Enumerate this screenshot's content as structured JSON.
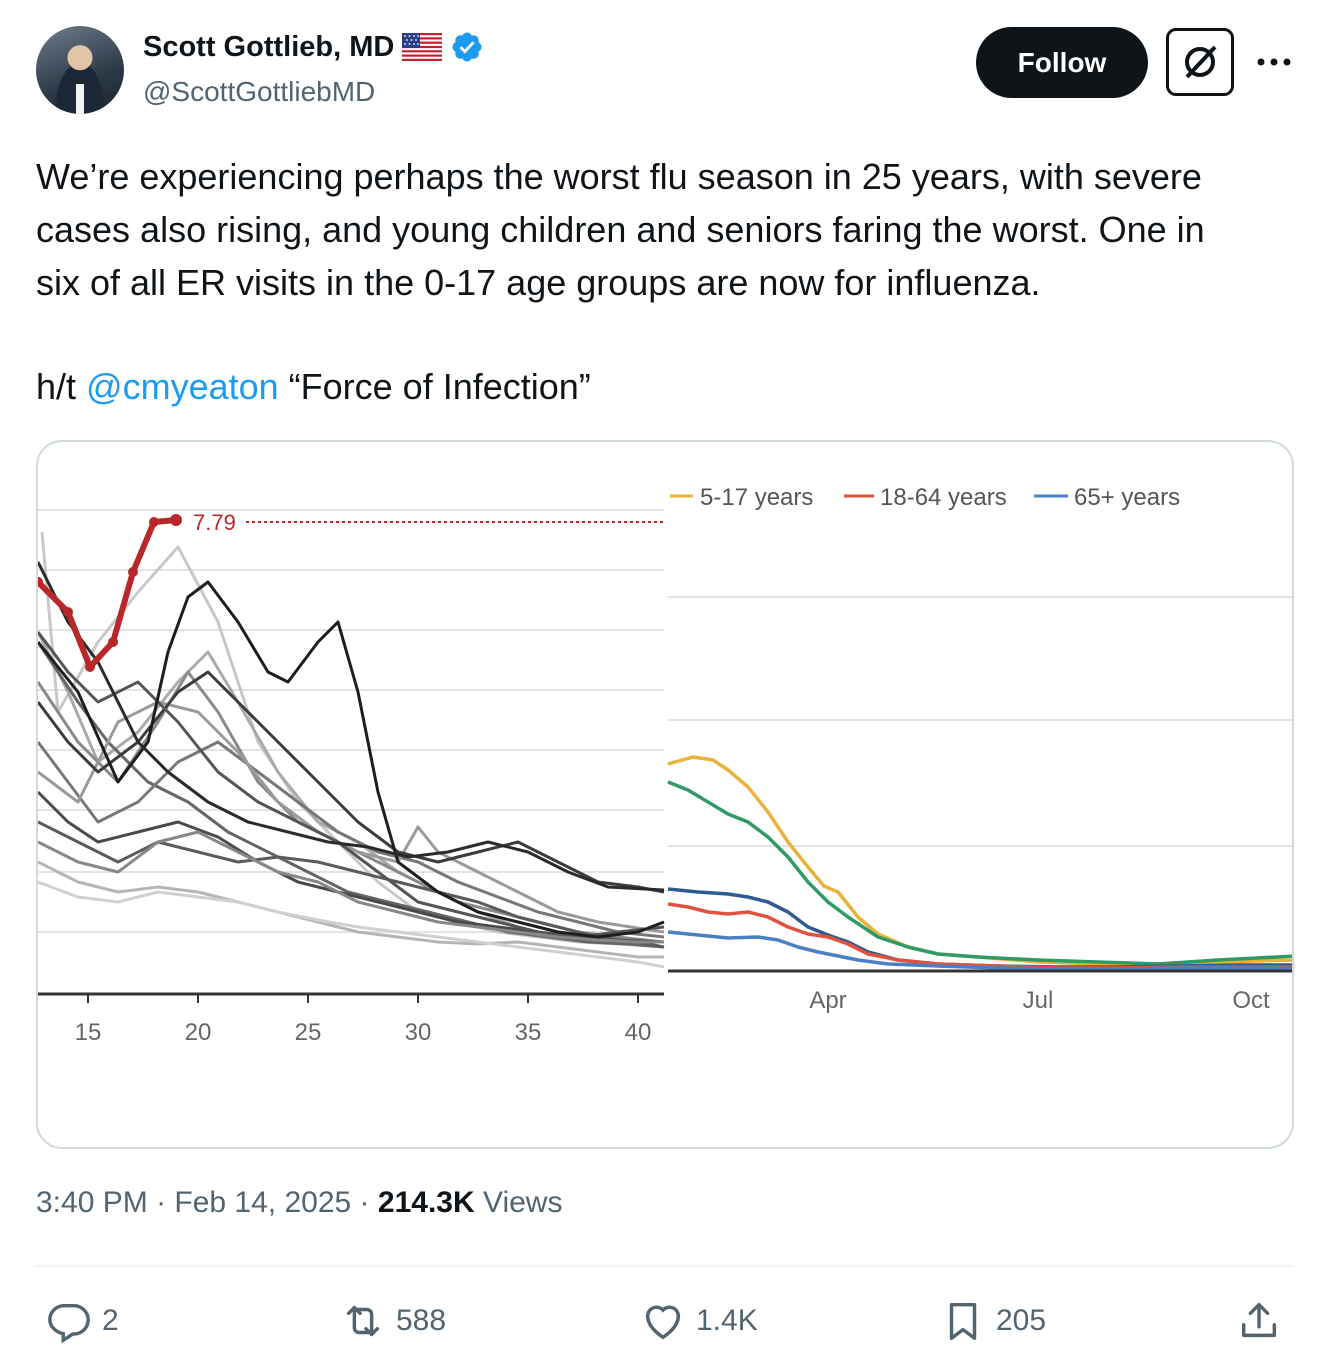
{
  "author": {
    "name": "Scott Gottlieb, MD",
    "handle": "@ScottGottliebMD"
  },
  "buttons": {
    "follow_label": "Follow"
  },
  "tweet": {
    "lines": [
      "We’re experiencing perhaps the worst flu season in 25 years, with severe",
      "cases also rising, and young children and seniors faring the worst. One in",
      "six of all ER visits in the 0-17 age groups are now for influenza."
    ],
    "ht_prefix": "h/t ",
    "mention": "@cmyeaton",
    "ht_suffix": " “Force of Infection”"
  },
  "meta": {
    "time": "3:40 PM",
    "sep1": " · ",
    "date": "Feb 14, 2025",
    "sep2": " · ",
    "views_count": "214.3K",
    "views_label": " Views"
  },
  "actions": {
    "replies": "2",
    "reposts": "588",
    "likes": "1.4K",
    "bookmarks": "205"
  },
  "colors": {
    "accent": "#1d9bf0",
    "current_season": "#b8282a"
  },
  "chart_data": [
    {
      "type": "line",
      "xticks": [
        "15",
        "20",
        "25",
        "30",
        "35",
        "40"
      ],
      "annotation": "7.79",
      "peak_value": 7.79
    },
    {
      "type": "line",
      "legend": [
        "5-17 years",
        "18-64 years",
        "65+ years"
      ],
      "xticks": [
        "Apr",
        "Jul",
        "Oct"
      ],
      "series_colors": [
        "#e8b33a",
        "#e0533f",
        "#4a7fc4",
        "#2f9a63"
      ]
    }
  ]
}
